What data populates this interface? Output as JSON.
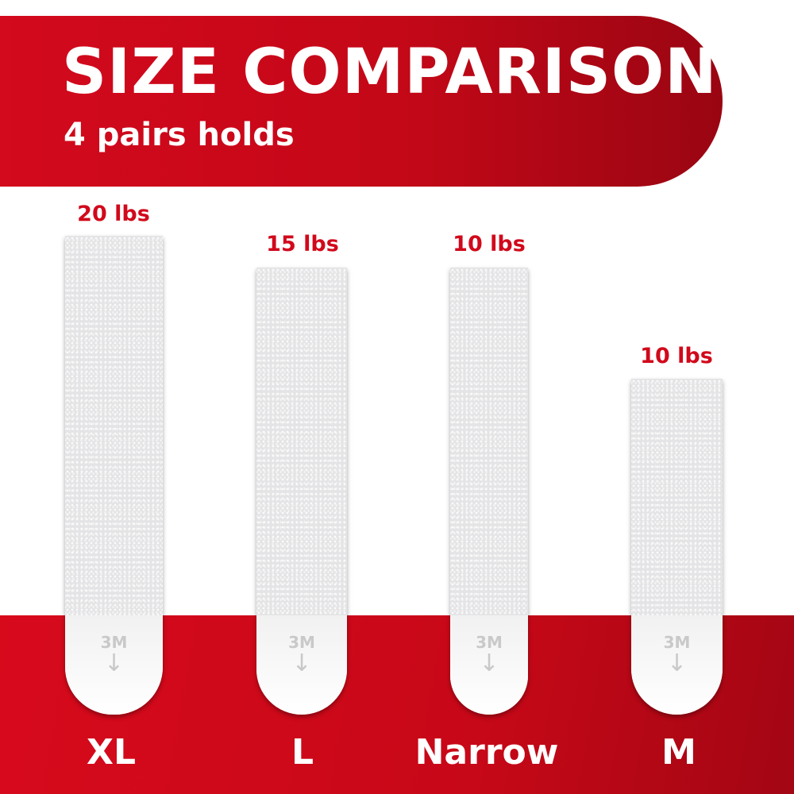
{
  "header": {
    "title": "SIZE COMPARISON",
    "subtitle": "4 pairs holds"
  },
  "colors": {
    "brand_red": "#d3091d",
    "dark_red": "#9a0512"
  },
  "strips": [
    {
      "size": "XL",
      "weight": "20 lbs",
      "logo": "3M"
    },
    {
      "size": "L",
      "weight": "15 lbs",
      "logo": "3M"
    },
    {
      "size": "Narrow",
      "weight": "10 lbs",
      "logo": "3M"
    },
    {
      "size": "M",
      "weight": "10 lbs",
      "logo": "3M"
    }
  ]
}
